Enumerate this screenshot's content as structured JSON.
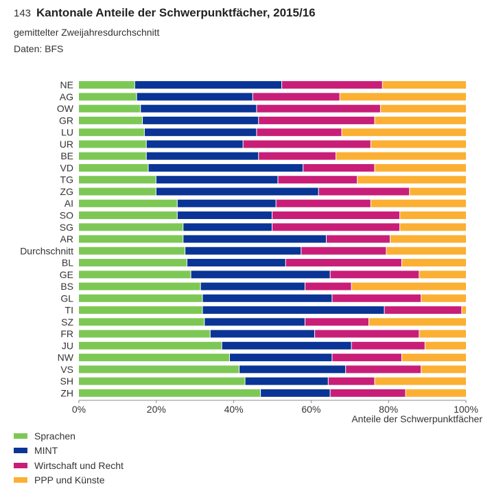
{
  "header": {
    "figure_number": "143",
    "title": "Kantonale Anteile der Schwerpunktfächer, 2015/16",
    "subtitle": "gemittelter Zweijahresdurchschnitt",
    "source": "Daten: BFS"
  },
  "colors": {
    "Sprachen": "#7dc855",
    "MINT": "#0a3596",
    "Wirtschaft und Recht": "#c81e78",
    "PPP und Künste": "#fbb033"
  },
  "legend": [
    {
      "name": "Sprachen"
    },
    {
      "name": "MINT"
    },
    {
      "name": "Wirtschaft und Recht"
    },
    {
      "name": "PPP und Künste"
    }
  ],
  "chart_data": {
    "type": "bar",
    "orientation": "horizontal",
    "stacked": true,
    "xlabel": "Anteile der Schwerpunktfächer",
    "xlim": [
      0,
      100
    ],
    "xticks": [
      "0%",
      "20%",
      "40%",
      "60%",
      "80%",
      "100%"
    ],
    "grid": false,
    "legend_position": "bottom-left",
    "categories": [
      "NE",
      "AG",
      "OW",
      "GR",
      "LU",
      "UR",
      "BE",
      "VD",
      "TG",
      "ZG",
      "AI",
      "SO",
      "SG",
      "AR",
      "Durchschnitt",
      "BL",
      "GE",
      "BS",
      "GL",
      "TI",
      "SZ",
      "FR",
      "JU",
      "NW",
      "VS",
      "SH",
      "ZH"
    ],
    "series": [
      {
        "name": "Sprachen",
        "values": [
          14.5,
          15,
          16,
          16.5,
          17,
          17.5,
          17.5,
          18,
          20,
          20,
          25.5,
          25.5,
          27,
          27,
          27.5,
          28,
          29,
          31.5,
          32,
          32,
          32.5,
          34,
          37,
          39,
          41.5,
          43,
          47
        ]
      },
      {
        "name": "MINT",
        "values": [
          38,
          30,
          30,
          30,
          29,
          25,
          29,
          40,
          31.5,
          42,
          25.5,
          24.5,
          23,
          37,
          30,
          25.5,
          36,
          27,
          33.5,
          47,
          26,
          27,
          33.5,
          26.5,
          27.5,
          21.5,
          18
        ]
      },
      {
        "name": "Wirtschaft und Recht",
        "values": [
          26,
          22.5,
          32,
          30,
          22,
          33,
          20,
          18.5,
          20.5,
          23.5,
          24.5,
          33,
          33,
          16.5,
          22,
          30,
          23,
          12,
          23,
          20,
          16.5,
          27,
          19,
          18,
          19.5,
          12,
          19.5
        ]
      },
      {
        "name": "PPP und Künste",
        "values": [
          21.5,
          32.5,
          22,
          23.5,
          32,
          24.5,
          33.5,
          23.5,
          28,
          14.5,
          24.5,
          17,
          17,
          19.5,
          20.5,
          16.5,
          12,
          29.5,
          11.5,
          1,
          25,
          12,
          10.5,
          16.5,
          11.5,
          23.5,
          15.5
        ]
      }
    ]
  }
}
